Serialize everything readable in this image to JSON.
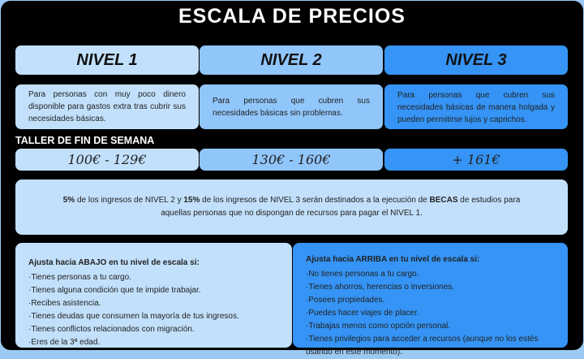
{
  "title": "ESCALA DE PRECIOS",
  "levels": [
    {
      "name": "NIVEL 1",
      "description": "Para personas con muy poco dinero disponible para gastos extra tras cubrir sus necesidades básicas.",
      "price": "100€ - 129€"
    },
    {
      "name": "NIVEL 2",
      "description": "Para personas que cubren sus necesidades básicas sin problemas.",
      "price": "130€ - 160€"
    },
    {
      "name": "NIVEL 3",
      "description": "Para personas que cubren sus necesidades básicas de manera holgada y pueden permitirse lujos y caprichos.",
      "price": "+ 161€"
    }
  ],
  "workshop_label": "TALLER DE FIN DE SEMANA",
  "becas": {
    "p1": "5%",
    "t1": " de los ingresos de NIVEL 2 y ",
    "p2": "15%",
    "t2": " de los ingresos de NIVEL 3 serán destinados a la ejecución de ",
    "b": "BECAS",
    "t3": " de estudios para aquellas personas que no dispongan de recursos para pagar el NIVEL 1."
  },
  "down": {
    "heading": "Ajusta hacia ABAJO en tu nivel de escala si:",
    "items": [
      "·Tienes personas a tu cargo.",
      "·Tienes alguna condición que te impide trabajar.",
      "·Recibes asistencia.",
      "·Tienes deudas que consumen la mayoría de tus ingresos.",
      "·Tienes conflictos relacionados con migración.",
      "·Eres de la 3ª edad."
    ]
  },
  "up": {
    "heading": "Ajusta hacia ARRIBA en tu nivel de escala si:",
    "items": [
      "·No tienes personas a tu cargo.",
      "·Tienes ahorros, herencias o inversiones.",
      "·Posees propiedades.",
      "·Puedes hacer viajes de placer.",
      "·Trabajas menos como opción personal.",
      "·Tienes privilegios para acceder a recursos (aunque no los estés usando en este momento)."
    ]
  },
  "colors": {
    "nivel1": "#c2e0fb",
    "nivel2": "#91c6fb",
    "nivel3": "#3594f5",
    "background": "#000000"
  }
}
